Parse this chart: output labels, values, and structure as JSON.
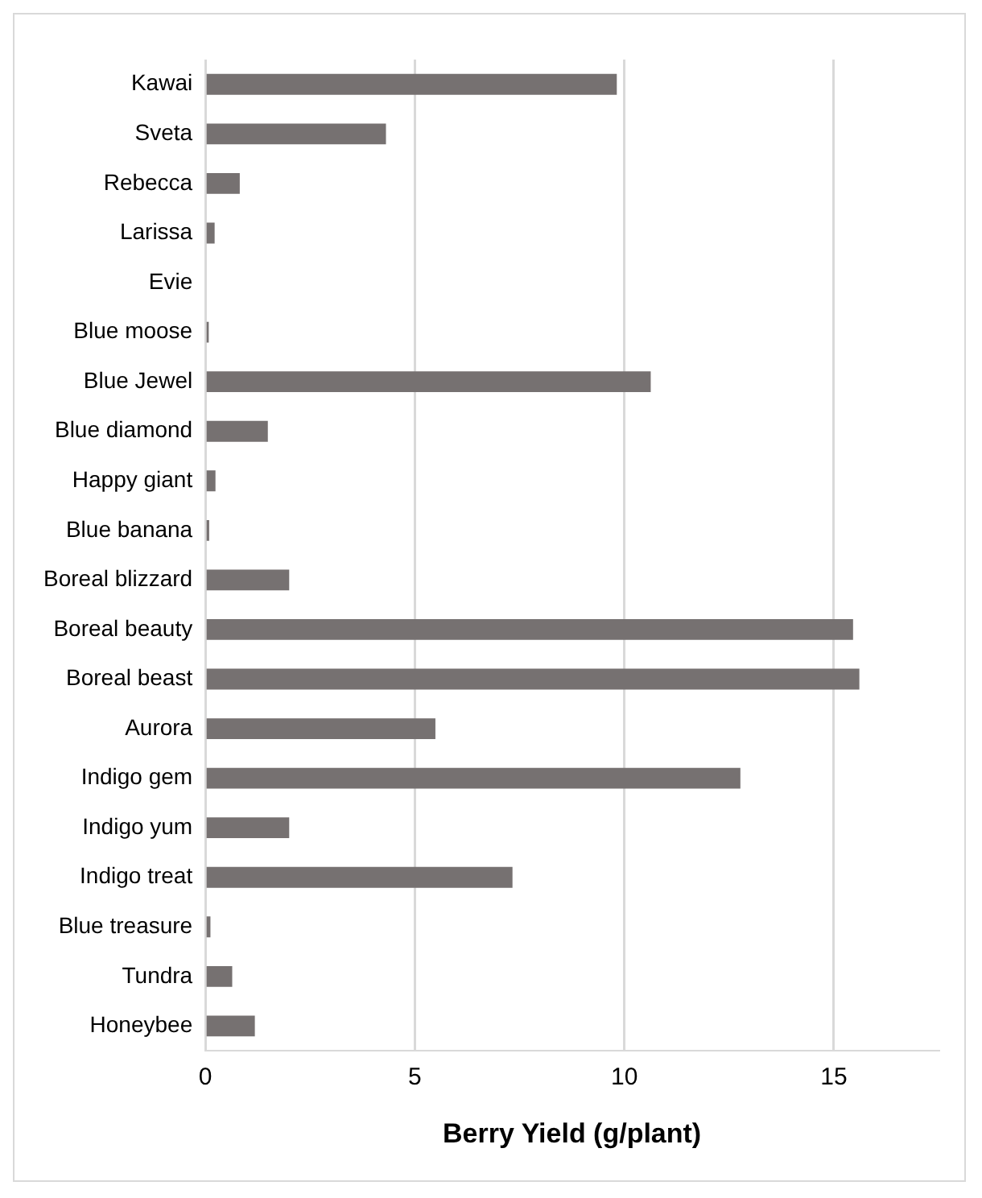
{
  "chart_data": {
    "type": "bar",
    "orientation": "horizontal",
    "xlabel": "Berry Yield (g/plant)",
    "categories": [
      "Kawai",
      "Sveta",
      "Rebecca",
      "Larissa",
      "Evie",
      "Blue moose",
      "Blue Jewel",
      "Blue diamond",
      "Happy giant",
      "Blue banana",
      "Boreal blizzard",
      "Boreal beauty",
      "Boreal beast",
      "Aurora",
      "Indigo gem",
      "Indigo yum",
      "Indigo treat",
      "Blue treasure",
      "Tundra",
      "Honeybee"
    ],
    "values": [
      9.82,
      4.31,
      0.82,
      0.22,
      0,
      0.08,
      10.63,
      1.49,
      0.24,
      0.09,
      2.0,
      15.46,
      15.61,
      5.49,
      12.77,
      2.0,
      7.33,
      0.12,
      0.64,
      1.18
    ],
    "color": "#767171",
    "xlim": [
      0,
      17.5
    ],
    "xticks": [
      0,
      5,
      10,
      15
    ],
    "grid": "x",
    "legend": false
  }
}
